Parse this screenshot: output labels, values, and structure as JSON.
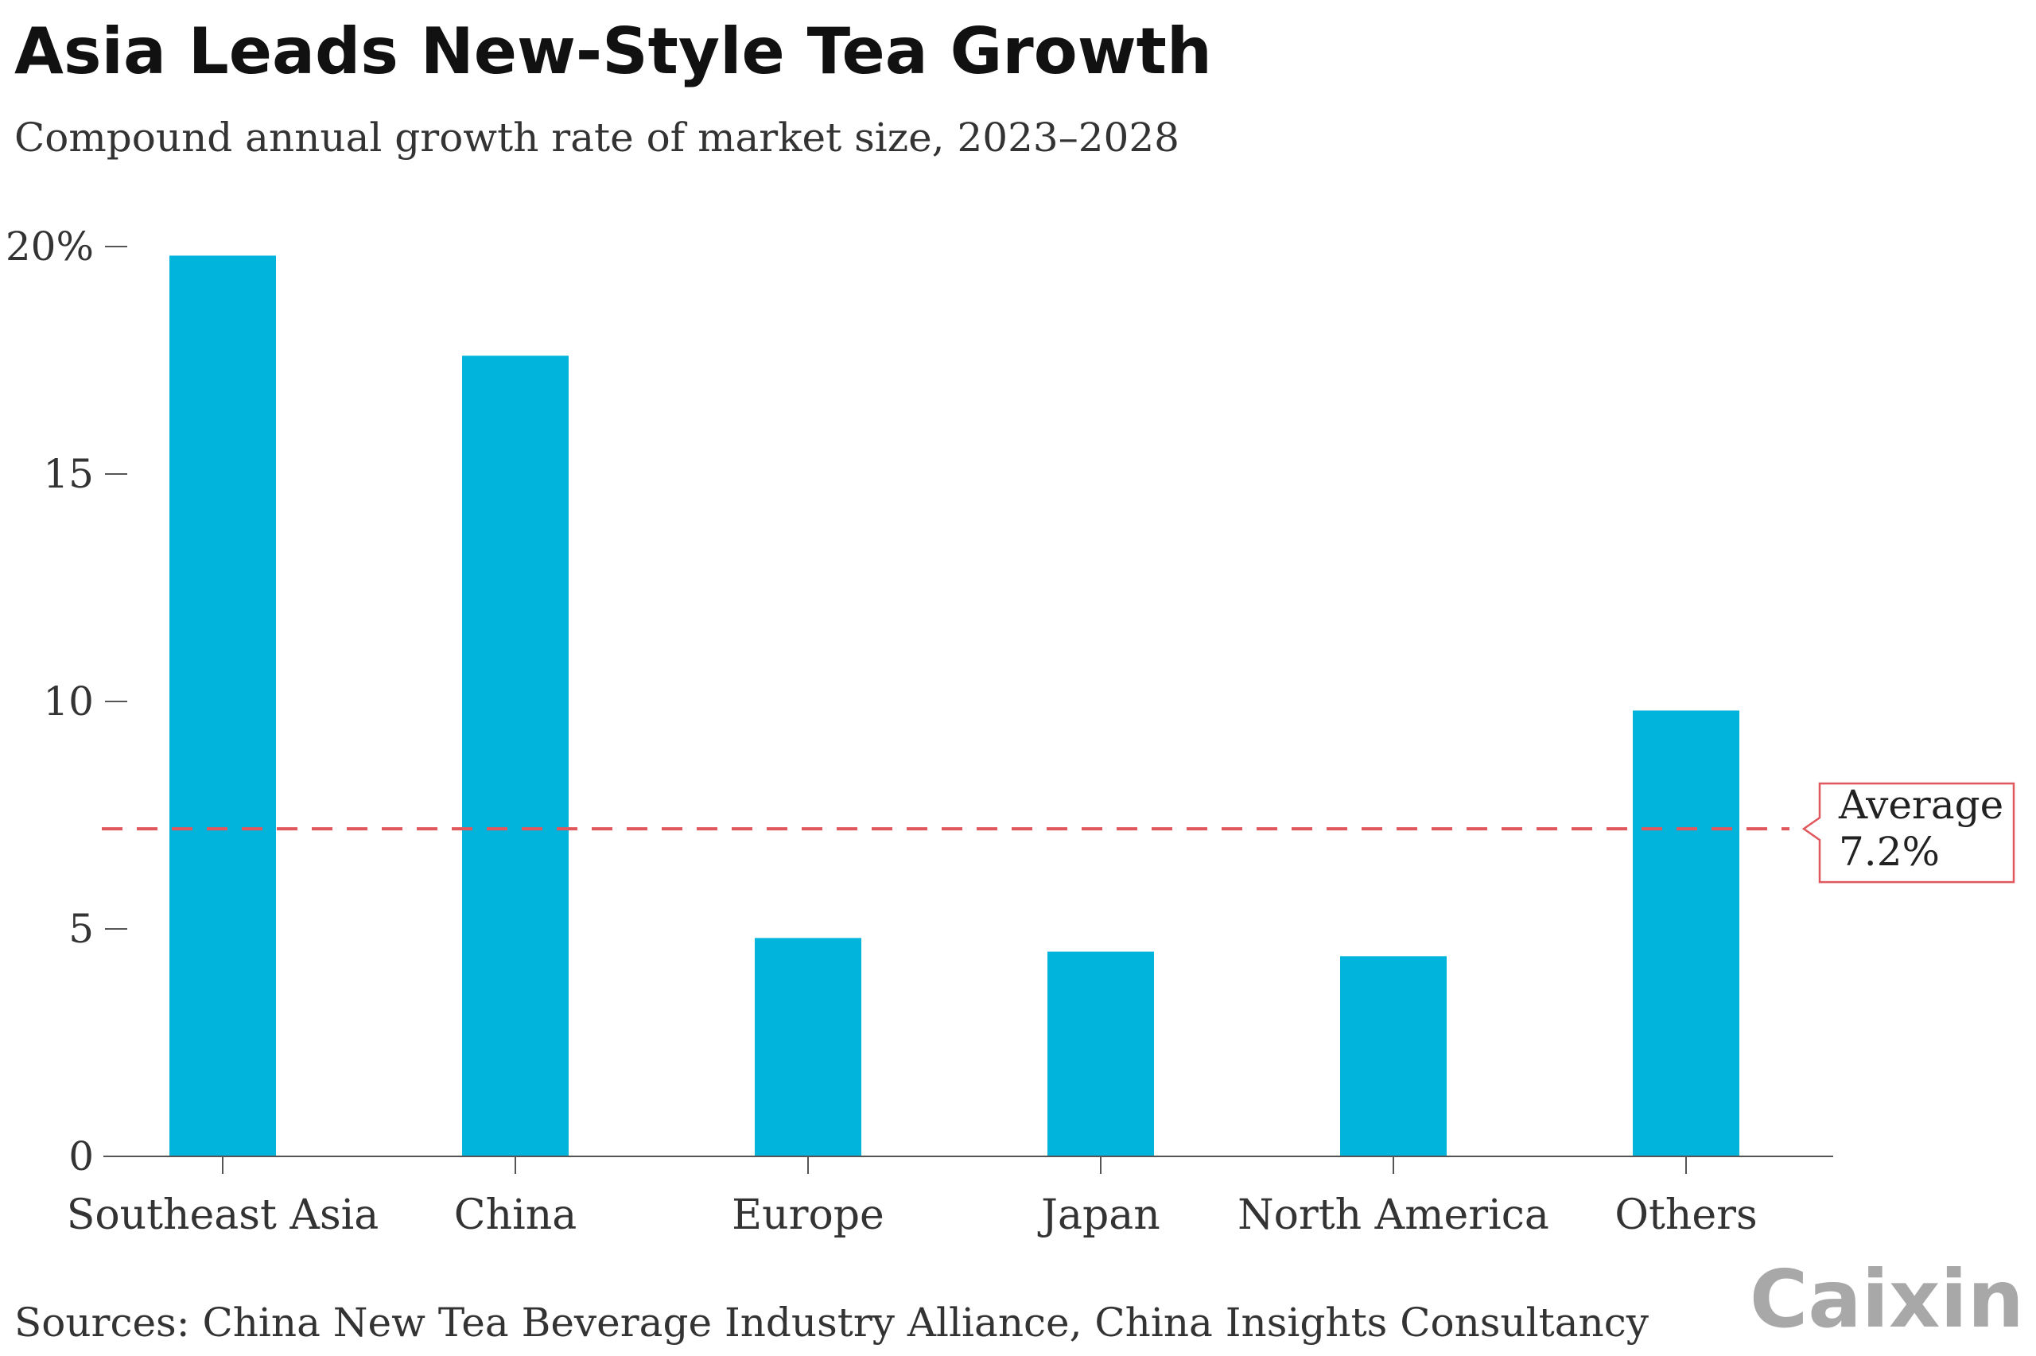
{
  "chart_data": {
    "type": "bar",
    "title": "Asia Leads New-Style Tea Growth",
    "subtitle": "Compound annual growth rate of market size, 2023–2028",
    "categories": [
      "Southeast Asia",
      "China",
      "Europe",
      "Japan",
      "North America",
      "Others"
    ],
    "values": [
      19.8,
      17.6,
      4.8,
      4.5,
      4.4,
      9.8
    ],
    "unit": "%",
    "ylim": [
      0,
      20
    ],
    "yticks": [
      {
        "value": 0,
        "label": "0"
      },
      {
        "value": 5,
        "label": "5"
      },
      {
        "value": 10,
        "label": "10"
      },
      {
        "value": 15,
        "label": "15"
      },
      {
        "value": 20,
        "label": "20%"
      }
    ],
    "xlabel": "",
    "ylabel": "",
    "grid": false,
    "reference_line": {
      "value": 7.2,
      "label_line1": "Average",
      "label_line2": "7.2%",
      "style": "dashed"
    },
    "bar_color": "#00b4dc",
    "reference_color": "#e0585d",
    "axis_color": "#555555"
  },
  "footer": {
    "source": "Sources: China New Tea Beverage Industry Alliance, China Insights Consultancy",
    "logo": "Caixin"
  }
}
